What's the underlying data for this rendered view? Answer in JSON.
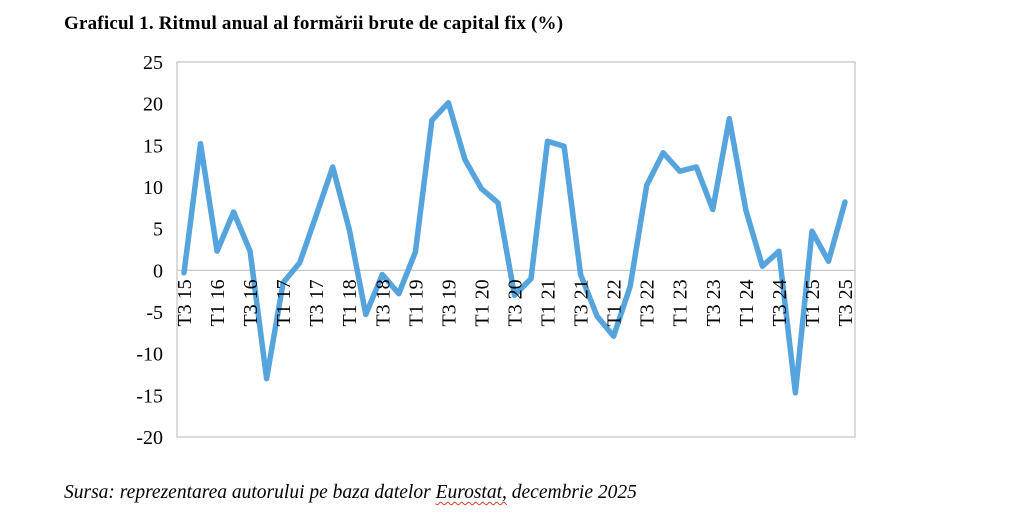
{
  "title": "Graficul 1. Ritmul anual al formării brute de capital fix (%)",
  "source": {
    "prefix": "Sursa: reprezentarea autorului pe baza datelor ",
    "highlight": "Eurostat,",
    "suffix": " decembrie 2025"
  },
  "chart_data": {
    "type": "line",
    "title": "Graficul 1. Ritmul anual al formării brute de capital fix (%)",
    "xlabel": "",
    "ylabel": "",
    "ylim": [
      -20,
      25
    ],
    "yticks": [
      25,
      20,
      15,
      10,
      5,
      0,
      -5,
      -10,
      -15,
      -20
    ],
    "grid": "zero-line-only",
    "legend": "none",
    "line_color": "#55a4dd",
    "axis_color": "#c3c3c3",
    "tick_every": 2,
    "xtick_labels": [
      "T3 15",
      "T1 16",
      "T3 16",
      "T1 17",
      "T3 17",
      "T1 18",
      "T3 18",
      "T1 19",
      "T3 19",
      "T1 20",
      "T3 20",
      "T1 21",
      "T3 21",
      "T1 22",
      "T3 22",
      "T1 23",
      "T3 23",
      "T1 24",
      "T3 24",
      "T1 25",
      "T3 25"
    ],
    "categories": [
      "T3 15",
      "T4 15",
      "T1 16",
      "T2 16",
      "T3 16",
      "T4 16",
      "T1 17",
      "T2 17",
      "T3 17",
      "T4 17",
      "T1 18",
      "T2 18",
      "T3 18",
      "T4 18",
      "T1 19",
      "T2 19",
      "T3 19",
      "T4 19",
      "T1 20",
      "T2 20",
      "T3 20",
      "T4 20",
      "T1 21",
      "T2 21",
      "T3 21",
      "T4 21",
      "T1 22",
      "T2 22",
      "T3 22",
      "T4 22",
      "T1 23",
      "T2 23",
      "T3 23",
      "T4 23",
      "T1 24",
      "T2 24",
      "T3 24",
      "T4 24",
      "T1 25",
      "T2 25",
      "T3 25"
    ],
    "values": [
      -0.3,
      15.2,
      2.3,
      7.0,
      2.3,
      -13.0,
      -1.5,
      0.9,
      6.6,
      12.4,
      4.9,
      -5.3,
      -0.5,
      -2.8,
      2.2,
      18.0,
      20.1,
      13.3,
      9.8,
      8.1,
      -3.0,
      -1.0,
      15.5,
      14.9,
      -0.5,
      -5.5,
      -7.9,
      -1.9,
      10.2,
      14.1,
      11.9,
      12.4,
      7.3,
      18.2,
      7.2,
      0.5,
      2.3,
      -14.7,
      4.7,
      1.1,
      8.2
    ]
  }
}
